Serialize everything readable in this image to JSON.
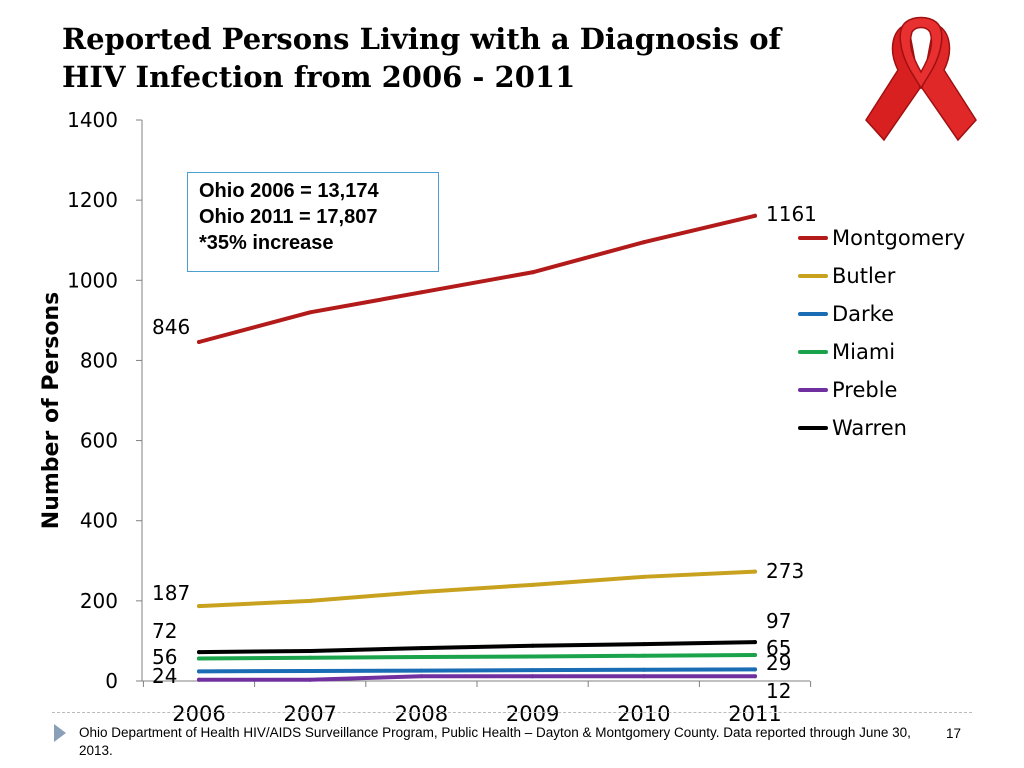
{
  "slide": {
    "title": "Reported Persons Living with a Diagnosis of HIV Infection from 2006 - 2011",
    "callout": [
      "Ohio 2006 = 13,174",
      "Ohio 2011 = 17,807",
      "*35% increase"
    ],
    "source": "Ohio Department of Health HIV/AIDS Surveillance Program, Public Health – Dayton & Montgomery County.  Data reported through June 30, 2013.",
    "page_number": "17",
    "ribbon_icon": "awareness-ribbon-icon"
  },
  "chart_data": {
    "type": "line",
    "title": "",
    "xlabel": "",
    "ylabel": "Number of Persons",
    "categories": [
      "2006",
      "2007",
      "2008",
      "2009",
      "2010",
      "2011"
    ],
    "ylim": [
      0,
      1400
    ],
    "yticks": [
      0,
      200,
      400,
      600,
      800,
      1000,
      1200,
      1400
    ],
    "grid": false,
    "legend_position": "right",
    "series": [
      {
        "name": "Montgomery",
        "color": "#b31b1b",
        "values": [
          846,
          920,
          970,
          1020,
          1095,
          1161
        ],
        "start_label": "846",
        "end_label": "1161"
      },
      {
        "name": "Butler",
        "color": "#c8a21e",
        "values": [
          187,
          200,
          222,
          240,
          260,
          273
        ],
        "start_label": "187",
        "end_label": "273"
      },
      {
        "name": "Darke",
        "color": "#1a6db5",
        "values": [
          24,
          25,
          26,
          27,
          28,
          29
        ],
        "start_label": "24",
        "end_label": "29"
      },
      {
        "name": "Miami",
        "color": "#1aa34a",
        "values": [
          56,
          58,
          60,
          61,
          63,
          65
        ],
        "start_label": "56",
        "end_label": "65"
      },
      {
        "name": "Preble",
        "color": "#7030a0",
        "values": [
          3,
          3,
          12,
          12,
          12,
          12
        ],
        "start_label": "",
        "end_label": "12"
      },
      {
        "name": "Warren",
        "color": "#000000",
        "values": [
          72,
          75,
          82,
          88,
          92,
          97
        ],
        "start_label": "72",
        "end_label": "97"
      }
    ]
  }
}
